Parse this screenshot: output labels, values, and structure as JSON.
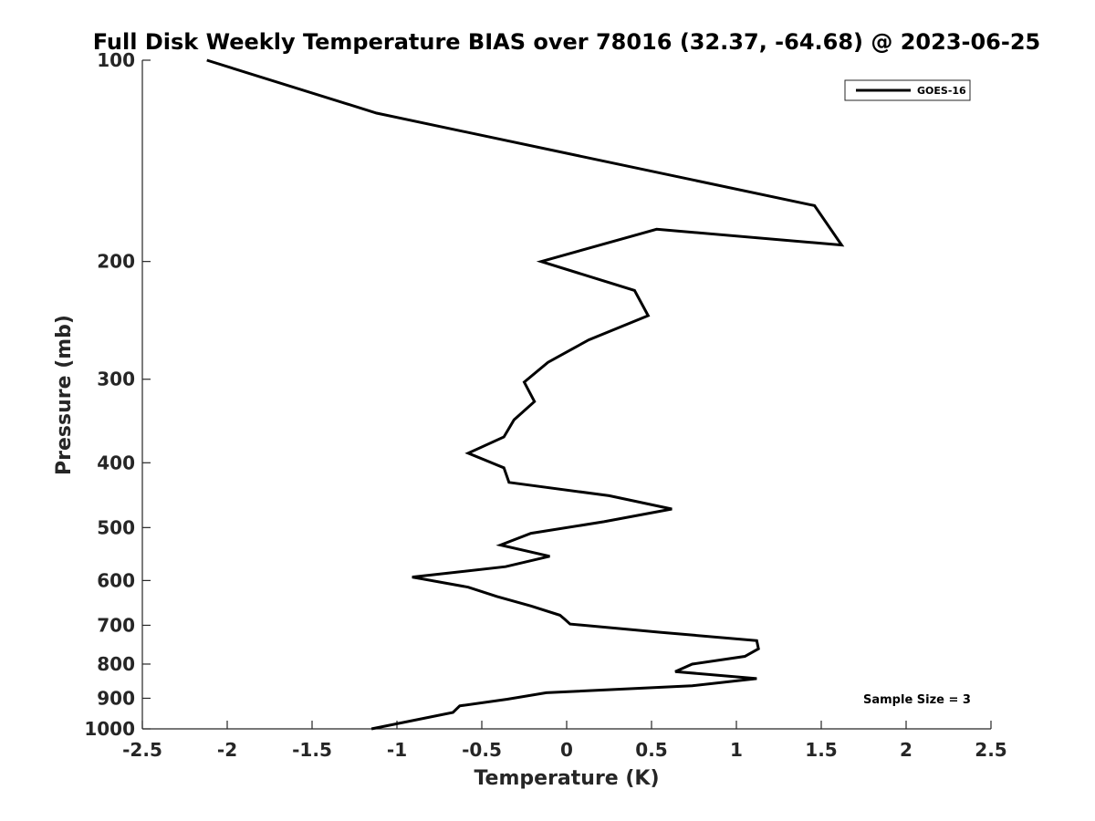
{
  "chart_data": {
    "type": "line",
    "title": "Full Disk Weekly Temperature BIAS over 78016 (32.37, -64.68) @ 2023-06-25",
    "xlabel": "Temperature (K)",
    "ylabel": "Pressure (mb)",
    "xlim": [
      -2.5,
      2.5
    ],
    "ylim": [
      100,
      1000
    ],
    "y_scale": "log",
    "y_reversed": true,
    "xticks": [
      "-2.5",
      "-2",
      "-1.5",
      "-1",
      "-0.5",
      "0",
      "0.5",
      "1",
      "1.5",
      "2",
      "2.5"
    ],
    "yticks": [
      "100",
      "200",
      "300",
      "400",
      "500",
      "600",
      "700",
      "800",
      "900",
      "1000"
    ],
    "grid": false,
    "legend_position": "top-right",
    "series": [
      {
        "name": "GOES-16",
        "color": "#000000",
        "points": [
          [
            -2.12,
            100
          ],
          [
            -1.12,
            120
          ],
          [
            1.46,
            165
          ],
          [
            1.62,
            189
          ],
          [
            0.53,
            179
          ],
          [
            -0.15,
            200
          ],
          [
            0.4,
            221
          ],
          [
            0.48,
            241
          ],
          [
            0.13,
            262
          ],
          [
            -0.11,
            283
          ],
          [
            -0.25,
            303
          ],
          [
            -0.19,
            324
          ],
          [
            -0.31,
            345
          ],
          [
            -0.37,
            366
          ],
          [
            -0.58,
            387
          ],
          [
            -0.37,
            407
          ],
          [
            -0.34,
            428
          ],
          [
            0.25,
            448
          ],
          [
            0.62,
            469
          ],
          [
            0.22,
            490
          ],
          [
            -0.21,
            510
          ],
          [
            -0.39,
            531
          ],
          [
            -0.1,
            552
          ],
          [
            -0.36,
            572
          ],
          [
            -0.91,
            593
          ],
          [
            -0.58,
            614
          ],
          [
            -0.41,
            634
          ],
          [
            -0.21,
            655
          ],
          [
            -0.04,
            676
          ],
          [
            -0.01,
            686
          ],
          [
            0.02,
            697
          ],
          [
            0.55,
            717
          ],
          [
            1.12,
            738
          ],
          [
            1.13,
            759
          ],
          [
            1.05,
            779
          ],
          [
            0.74,
            800
          ],
          [
            0.64,
            821
          ],
          [
            1.12,
            841
          ],
          [
            0.74,
            862
          ],
          [
            -0.12,
            883
          ],
          [
            -0.35,
            903
          ],
          [
            -0.63,
            924
          ],
          [
            -0.67,
            945
          ],
          [
            -1.15,
            1000
          ]
        ]
      }
    ],
    "annotation": "Sample Size = 3"
  }
}
